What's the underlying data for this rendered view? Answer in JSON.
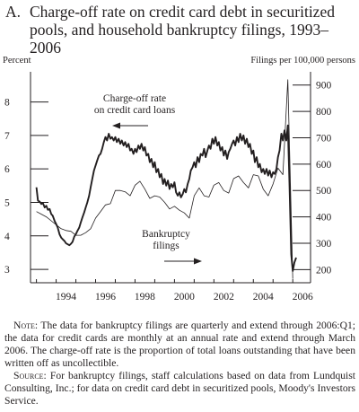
{
  "title": {
    "letter": "A.",
    "line1": "Charge-off rate on credit card debt in securitized",
    "line2": "pools, and household bankruptcy filings, 1993–2006"
  },
  "notes": {
    "note_label": "Note:",
    "note_text": " The data for bankruptcy filings are quarterly and extend through 2006:Q1; the data for credit cards are monthly at an annual rate and extend through March 2006. The charge-off rate is the proportion of total loans outstanding that have been written off as uncollectible.",
    "source_label": "Source:",
    "source_text": " For bankruptcy filings, staff calculations based on data from Lundquist Consulting, Inc.; for data on credit card debt in securitized pools, Moody's Investors Service."
  },
  "chart_data": {
    "type": "line",
    "left_axis": {
      "unit_label": "Percent",
      "ticks": [
        "3",
        "4",
        "5",
        "6",
        "7",
        "8"
      ],
      "range": [
        2.6,
        8.9
      ]
    },
    "right_axis": {
      "unit_label": "Filings per 100,000 persons",
      "ticks": [
        "200",
        "300",
        "400",
        "500",
        "600",
        "700",
        "800",
        "900"
      ],
      "range": [
        150,
        950
      ]
    },
    "x_axis": {
      "ticks": [
        "1994",
        "1996",
        "1998",
        "2000",
        "2002",
        "2004",
        "2006"
      ],
      "range": [
        1992.7,
        2006.9
      ]
    },
    "grid": false,
    "annotations": [
      {
        "series": "chargeoff",
        "lines": [
          "Charge-off rate",
          "on credit card loans"
        ],
        "arrow": "left"
      },
      {
        "series": "bankruptcy",
        "lines": [
          "Bankruptcy",
          "filings"
        ],
        "arrow": "right"
      }
    ],
    "series": [
      {
        "key": "chargeoff",
        "axis": "left",
        "style": "bold",
        "points": [
          [
            1993.0,
            5.45
          ],
          [
            1993.08,
            5.05
          ],
          [
            1993.17,
            5.02
          ],
          [
            1993.25,
            4.95
          ],
          [
            1993.33,
            4.98
          ],
          [
            1993.42,
            4.85
          ],
          [
            1993.5,
            4.9
          ],
          [
            1993.58,
            4.78
          ],
          [
            1993.67,
            4.8
          ],
          [
            1993.75,
            4.65
          ],
          [
            1993.83,
            4.6
          ],
          [
            1993.92,
            4.45
          ],
          [
            1994.0,
            4.35
          ],
          [
            1994.08,
            4.25
          ],
          [
            1994.17,
            4.05
          ],
          [
            1994.25,
            3.95
          ],
          [
            1994.33,
            3.9
          ],
          [
            1994.42,
            3.85
          ],
          [
            1994.5,
            3.78
          ],
          [
            1994.58,
            3.75
          ],
          [
            1994.67,
            3.72
          ],
          [
            1994.75,
            3.76
          ],
          [
            1994.83,
            3.82
          ],
          [
            1994.92,
            3.98
          ],
          [
            1995.0,
            4.05
          ],
          [
            1995.08,
            4.15
          ],
          [
            1995.17,
            4.25
          ],
          [
            1995.25,
            4.4
          ],
          [
            1995.33,
            4.55
          ],
          [
            1995.42,
            4.7
          ],
          [
            1995.5,
            4.85
          ],
          [
            1995.58,
            5.0
          ],
          [
            1995.67,
            5.2
          ],
          [
            1995.75,
            5.45
          ],
          [
            1995.83,
            5.7
          ],
          [
            1995.92,
            5.95
          ],
          [
            1996.0,
            6.1
          ],
          [
            1996.08,
            6.25
          ],
          [
            1996.17,
            6.4
          ],
          [
            1996.25,
            6.45
          ],
          [
            1996.33,
            6.6
          ],
          [
            1996.42,
            6.8
          ],
          [
            1996.5,
            6.95
          ],
          [
            1996.58,
            6.85
          ],
          [
            1996.67,
            7.05
          ],
          [
            1996.75,
            6.9
          ],
          [
            1996.83,
            6.95
          ],
          [
            1996.92,
            6.85
          ],
          [
            1997.0,
            6.95
          ],
          [
            1997.08,
            6.8
          ],
          [
            1997.17,
            6.9
          ],
          [
            1997.25,
            6.75
          ],
          [
            1997.33,
            6.85
          ],
          [
            1997.42,
            6.7
          ],
          [
            1997.5,
            6.8
          ],
          [
            1997.58,
            6.65
          ],
          [
            1997.67,
            6.75
          ],
          [
            1997.75,
            6.55
          ],
          [
            1997.83,
            6.6
          ],
          [
            1997.92,
            6.45
          ],
          [
            1998.0,
            6.6
          ],
          [
            1998.08,
            6.5
          ],
          [
            1998.17,
            6.7
          ],
          [
            1998.25,
            6.6
          ],
          [
            1998.33,
            6.75
          ],
          [
            1998.42,
            6.55
          ],
          [
            1998.5,
            6.65
          ],
          [
            1998.58,
            6.4
          ],
          [
            1998.67,
            6.45
          ],
          [
            1998.75,
            6.2
          ],
          [
            1998.83,
            6.3
          ],
          [
            1998.92,
            6.05
          ],
          [
            1999.0,
            6.2
          ],
          [
            1999.08,
            5.9
          ],
          [
            1999.17,
            6.0
          ],
          [
            1999.25,
            5.75
          ],
          [
            1999.33,
            5.85
          ],
          [
            1999.42,
            5.55
          ],
          [
            1999.5,
            5.7
          ],
          [
            1999.58,
            5.5
          ],
          [
            1999.67,
            5.65
          ],
          [
            1999.75,
            5.4
          ],
          [
            1999.83,
            5.55
          ],
          [
            1999.92,
            5.45
          ],
          [
            2000.0,
            5.6
          ],
          [
            2000.08,
            5.3
          ],
          [
            2000.17,
            5.2
          ],
          [
            2000.25,
            5.3
          ],
          [
            2000.33,
            5.15
          ],
          [
            2000.42,
            5.25
          ],
          [
            2000.5,
            5.4
          ],
          [
            2000.58,
            5.3
          ],
          [
            2000.67,
            5.55
          ],
          [
            2000.75,
            5.7
          ],
          [
            2000.83,
            5.95
          ],
          [
            2000.92,
            6.05
          ],
          [
            2001.0,
            6.2
          ],
          [
            2001.08,
            6.05
          ],
          [
            2001.17,
            6.35
          ],
          [
            2001.25,
            6.2
          ],
          [
            2001.33,
            6.45
          ],
          [
            2001.42,
            6.4
          ],
          [
            2001.5,
            6.6
          ],
          [
            2001.58,
            6.35
          ],
          [
            2001.67,
            6.55
          ],
          [
            2001.75,
            6.7
          ],
          [
            2001.83,
            6.6
          ],
          [
            2001.92,
            6.9
          ],
          [
            2002.0,
            6.75
          ],
          [
            2002.08,
            6.95
          ],
          [
            2002.17,
            6.7
          ],
          [
            2002.25,
            6.8
          ],
          [
            2002.33,
            6.55
          ],
          [
            2002.42,
            6.65
          ],
          [
            2002.5,
            6.4
          ],
          [
            2002.58,
            6.55
          ],
          [
            2002.67,
            6.3
          ],
          [
            2002.75,
            6.5
          ],
          [
            2002.83,
            6.6
          ],
          [
            2002.92,
            6.75
          ],
          [
            2003.0,
            6.85
          ],
          [
            2003.08,
            6.7
          ],
          [
            2003.17,
            6.95
          ],
          [
            2003.25,
            6.8
          ],
          [
            2003.33,
            7.05
          ],
          [
            2003.42,
            6.85
          ],
          [
            2003.5,
            7.0
          ],
          [
            2003.58,
            6.75
          ],
          [
            2003.67,
            6.9
          ],
          [
            2003.75,
            6.65
          ],
          [
            2003.83,
            6.75
          ],
          [
            2003.92,
            6.45
          ],
          [
            2004.0,
            6.55
          ],
          [
            2004.08,
            6.2
          ],
          [
            2004.17,
            6.35
          ],
          [
            2004.25,
            6.05
          ],
          [
            2004.33,
            6.15
          ],
          [
            2004.42,
            5.9
          ],
          [
            2004.5,
            6.0
          ],
          [
            2004.58,
            5.85
          ],
          [
            2004.67,
            6.0
          ],
          [
            2004.75,
            5.8
          ],
          [
            2004.83,
            5.95
          ],
          [
            2004.92,
            5.75
          ],
          [
            2005.0,
            5.9
          ],
          [
            2005.08,
            5.85
          ],
          [
            2005.17,
            6.0
          ],
          [
            2005.25,
            6.35
          ],
          [
            2005.33,
            6.55
          ],
          [
            2005.42,
            7.05
          ],
          [
            2005.5,
            6.85
          ],
          [
            2005.58,
            7.15
          ],
          [
            2005.67,
            6.85
          ],
          [
            2005.75,
            7.3
          ],
          [
            2005.83,
            5.6
          ],
          [
            2005.92,
            3.45
          ],
          [
            2006.0,
            2.95
          ],
          [
            2006.08,
            3.2
          ],
          [
            2006.17,
            3.35
          ]
        ]
      },
      {
        "key": "bankruptcy",
        "axis": "right",
        "style": "thin",
        "points": [
          [
            1993.0,
            420
          ],
          [
            1993.25,
            410
          ],
          [
            1993.5,
            400
          ],
          [
            1993.75,
            385
          ],
          [
            1994.0,
            370
          ],
          [
            1994.25,
            355
          ],
          [
            1994.5,
            348
          ],
          [
            1994.75,
            345
          ],
          [
            1995.0,
            330
          ],
          [
            1995.25,
            330
          ],
          [
            1995.5,
            340
          ],
          [
            1995.75,
            355
          ],
          [
            1996.0,
            395
          ],
          [
            1996.25,
            420
          ],
          [
            1996.5,
            445
          ],
          [
            1996.75,
            450
          ],
          [
            1997.0,
            500
          ],
          [
            1997.25,
            500
          ],
          [
            1997.5,
            495
          ],
          [
            1997.75,
            480
          ],
          [
            1998.0,
            520
          ],
          [
            1998.25,
            535
          ],
          [
            1998.5,
            505
          ],
          [
            1998.75,
            470
          ],
          [
            1999.0,
            480
          ],
          [
            1999.25,
            475
          ],
          [
            1999.5,
            455
          ],
          [
            1999.75,
            430
          ],
          [
            2000.0,
            440
          ],
          [
            2000.25,
            425
          ],
          [
            2000.5,
            415
          ],
          [
            2000.75,
            395
          ],
          [
            2001.0,
            480
          ],
          [
            2001.25,
            510
          ],
          [
            2001.5,
            480
          ],
          [
            2001.75,
            475
          ],
          [
            2002.0,
            520
          ],
          [
            2002.25,
            530
          ],
          [
            2002.5,
            500
          ],
          [
            2002.75,
            490
          ],
          [
            2003.0,
            545
          ],
          [
            2003.25,
            555
          ],
          [
            2003.5,
            530
          ],
          [
            2003.75,
            510
          ],
          [
            2004.0,
            560
          ],
          [
            2004.25,
            555
          ],
          [
            2004.5,
            505
          ],
          [
            2004.75,
            480
          ],
          [
            2005.0,
            525
          ],
          [
            2005.25,
            585
          ],
          [
            2005.5,
            560
          ],
          [
            2005.75,
            920
          ],
          [
            2006.0,
            165
          ]
        ]
      }
    ]
  }
}
